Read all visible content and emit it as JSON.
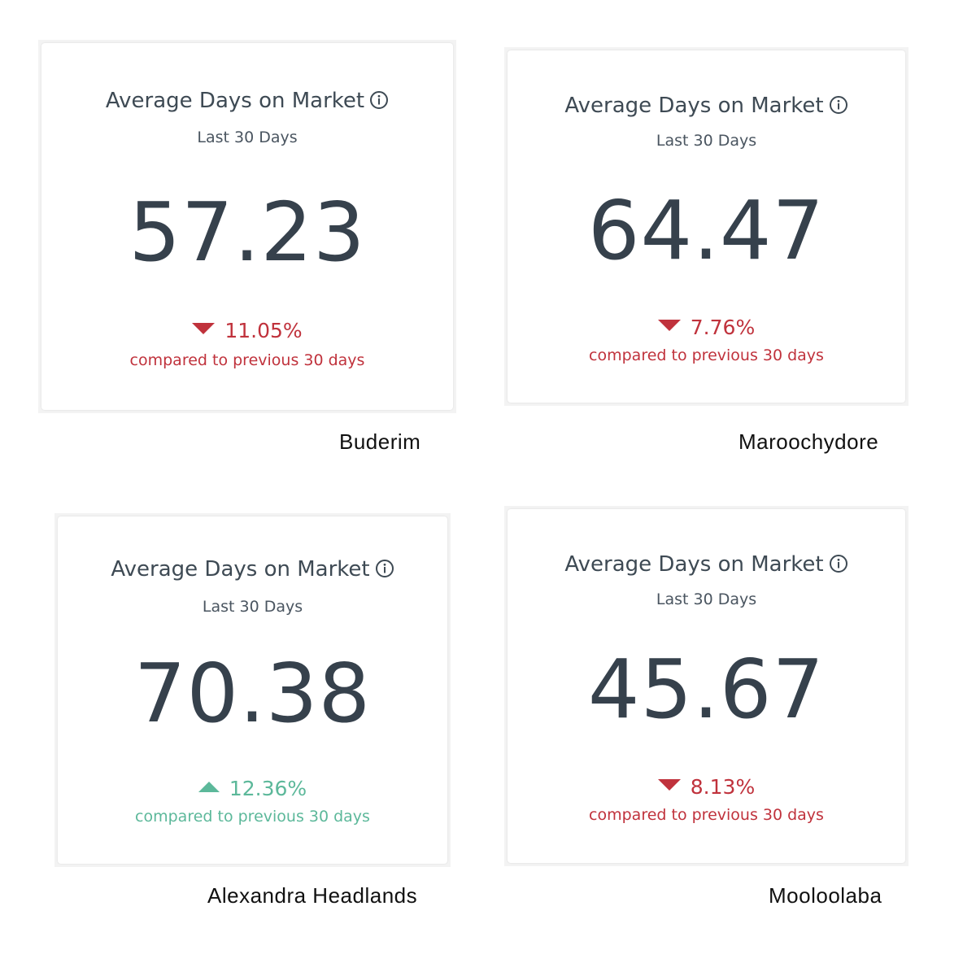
{
  "cards": [
    {
      "title": "Average Days on Market",
      "period": "Last 30 Days",
      "value": "57.23",
      "change": "11.05%",
      "direction": "down",
      "comparison": "compared to previous 30 days",
      "suburb": "Buderim"
    },
    {
      "title": "Average Days on Market",
      "period": "Last 30 Days",
      "value": "64.47",
      "change": "7.76%",
      "direction": "down",
      "comparison": "compared to previous 30 days",
      "suburb": "Maroochydore"
    },
    {
      "title": "Average Days on Market",
      "period": "Last 30 Days",
      "value": "70.38",
      "change": "12.36%",
      "direction": "up",
      "comparison": "compared to previous 30 days",
      "suburb": "Alexandra Headlands"
    },
    {
      "title": "Average Days on Market",
      "period": "Last 30 Days",
      "value": "45.67",
      "change": "8.13%",
      "direction": "down",
      "comparison": "compared to previous 30 days",
      "suburb": "Mooloolaba"
    }
  ],
  "colors": {
    "text_dark": "#36414c",
    "negative": "#c0323c",
    "positive": "#5cb89a"
  },
  "icons": {
    "info": "info-icon",
    "decrease": "triangle-down-icon",
    "increase": "triangle-up-icon"
  }
}
